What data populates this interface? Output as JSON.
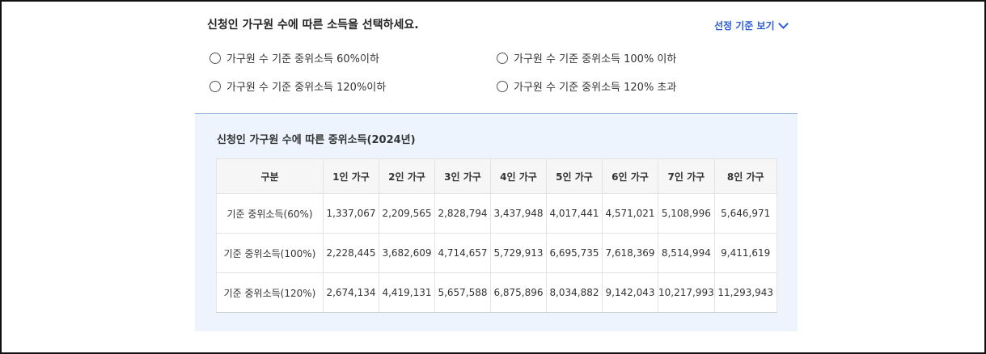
{
  "question": "신청인 가구원 수에 따른 소득을 선택하세요.",
  "criteria_toggle": "선정 기준 보기",
  "options": [
    "가구원 수 기준 중위소득 60%이하",
    "가구원 수 기준 중위소득 100% 이하",
    "가구원 수 기준 중위소득 120%이하",
    "가구원 수 기준 중위소득 120% 초과"
  ],
  "table": {
    "title": "신청인 가구원 수에 따른 중위소득(2024년)",
    "headers": [
      "구분",
      "1인 가구",
      "2인 가구",
      "3인 가구",
      "4인 가구",
      "5인 가구",
      "6인 가구",
      "7인 가구",
      "8인 가구"
    ],
    "rows": [
      [
        "기준 중위소득(60%)",
        "1,337,067",
        "2,209,565",
        "2,828,794",
        "3,437,948",
        "4,017,441",
        "4,571,021",
        "5,108,996",
        "5,646,971"
      ],
      [
        "기준 중위소득(100%)",
        "2,228,445",
        "3,682,609",
        "4,714,657",
        "5,729,913",
        "6,695,735",
        "7,618,369",
        "8,514,994",
        "9,411,619"
      ],
      [
        "기준 중위소득(120%)",
        "2,674,134",
        "4,419,131",
        "5,657,588",
        "6,875,896",
        "8,034,882",
        "9,142,043",
        "10,217,993",
        "11,293,943"
      ]
    ]
  }
}
